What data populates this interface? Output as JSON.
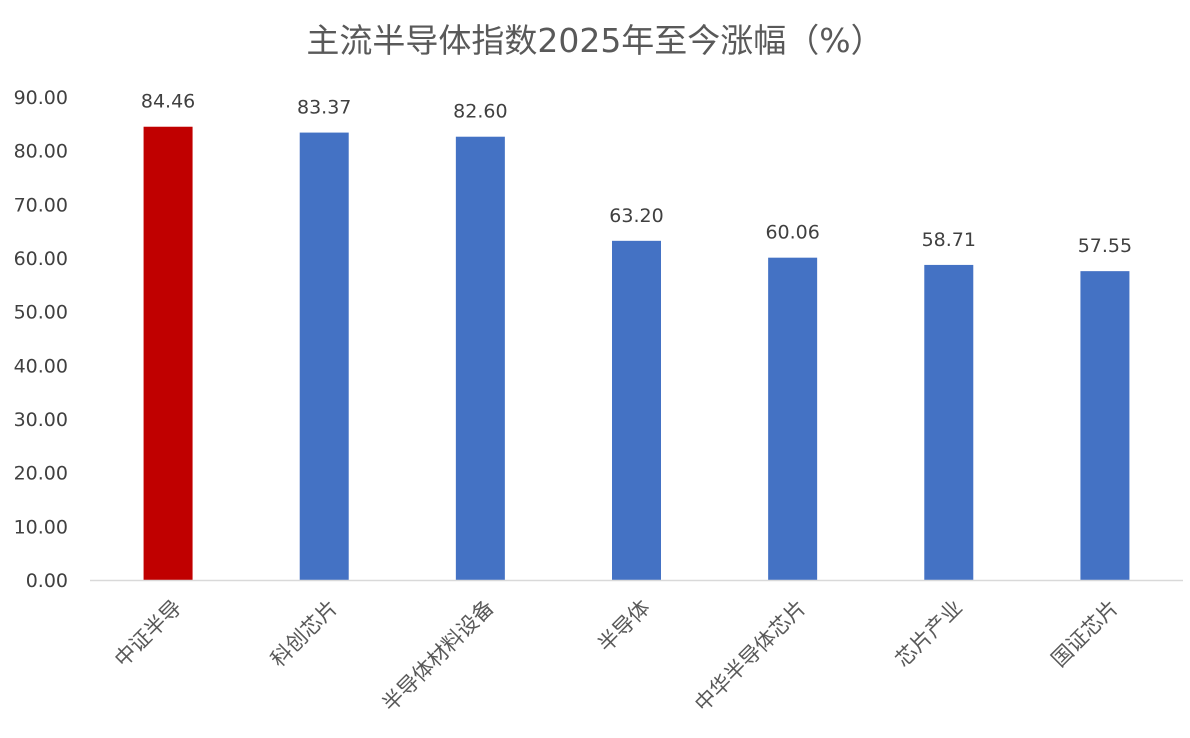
{
  "chart_data": {
    "type": "bar",
    "title": "主流半导体指数2025年至今涨幅（%）",
    "xlabel": "",
    "ylabel": "",
    "categories": [
      "中证半导",
      "科创芯片",
      "半导体材料设备",
      "半导体",
      "中华半导体芯片",
      "芯片产业",
      "国证芯片"
    ],
    "series": [
      {
        "values": [
          84.46,
          83.37,
          82.6,
          63.2,
          60.06,
          58.71,
          57.55
        ],
        "data_labels": [
          "84.46",
          "83.37",
          "82.60",
          "63.20",
          "60.06",
          "58.71",
          "57.55"
        ],
        "colors": [
          "#C00000",
          "#4472C4",
          "#4472C4",
          "#4472C4",
          "#4472C4",
          "#4472C4",
          "#4472C4"
        ]
      }
    ],
    "ylim": [
      0,
      90
    ],
    "y_ticks": [
      "0.00",
      "10.00",
      "20.00",
      "30.00",
      "40.00",
      "50.00",
      "60.00",
      "70.00",
      "80.00",
      "90.00"
    ],
    "y_tick_values": [
      0,
      10,
      20,
      30,
      40,
      50,
      60,
      70,
      80,
      90
    ],
    "grid": false,
    "legend": "none",
    "axis_color": "#D9D9D9",
    "text_color": "#404040"
  }
}
